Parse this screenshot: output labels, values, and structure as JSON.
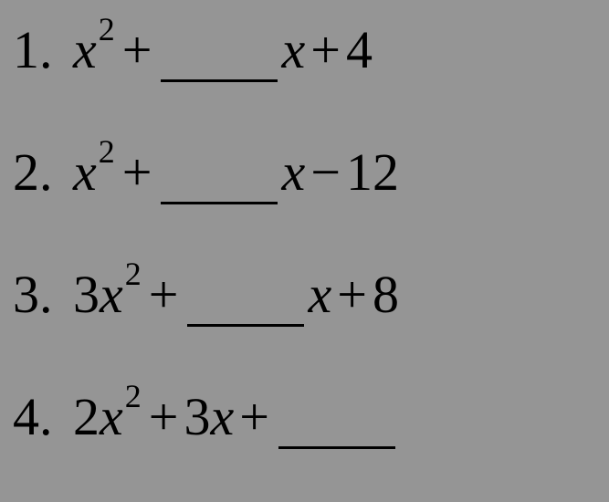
{
  "background_color": "#959595",
  "text_color": "#000000",
  "font_family": "Times New Roman",
  "base_font_size": 58,
  "superscript_font_size": 36,
  "blank_width": 128,
  "blank_border_width": 3,
  "problems": [
    {
      "number": "1.",
      "parts": [
        {
          "type": "var",
          "text": "x"
        },
        {
          "type": "sup",
          "text": "2"
        },
        {
          "type": "op",
          "text": "+"
        },
        {
          "type": "blank"
        },
        {
          "type": "var",
          "text": "x"
        },
        {
          "type": "op",
          "text": "+"
        },
        {
          "type": "const",
          "text": "4"
        }
      ]
    },
    {
      "number": "2.",
      "parts": [
        {
          "type": "var",
          "text": "x"
        },
        {
          "type": "sup",
          "text": "2"
        },
        {
          "type": "op",
          "text": "+"
        },
        {
          "type": "blank"
        },
        {
          "type": "var",
          "text": "x"
        },
        {
          "type": "op",
          "text": "−"
        },
        {
          "type": "const",
          "text": "12"
        }
      ]
    },
    {
      "number": "3.",
      "parts": [
        {
          "type": "const",
          "text": "3"
        },
        {
          "type": "var",
          "text": "x"
        },
        {
          "type": "sup",
          "text": "2"
        },
        {
          "type": "op",
          "text": "+"
        },
        {
          "type": "blank"
        },
        {
          "type": "var",
          "text": "x"
        },
        {
          "type": "op",
          "text": "+"
        },
        {
          "type": "const",
          "text": "8"
        }
      ]
    },
    {
      "number": "4.",
      "parts": [
        {
          "type": "const",
          "text": "2"
        },
        {
          "type": "var",
          "text": "x"
        },
        {
          "type": "sup",
          "text": "2"
        },
        {
          "type": "op",
          "text": "+"
        },
        {
          "type": "const",
          "text": "3"
        },
        {
          "type": "var",
          "text": "x"
        },
        {
          "type": "op",
          "text": "+"
        },
        {
          "type": "blank"
        }
      ]
    }
  ]
}
